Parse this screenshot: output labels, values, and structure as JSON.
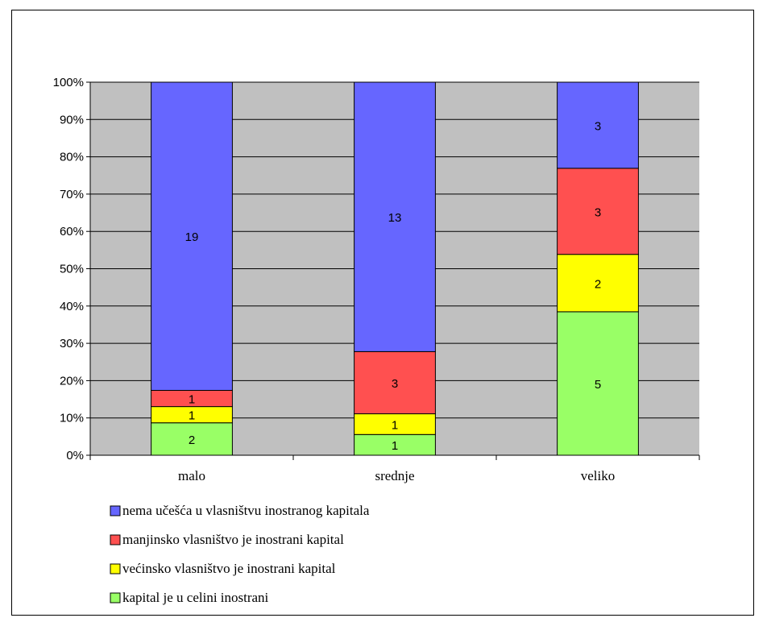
{
  "chart_data": {
    "type": "bar",
    "stacked": "percent",
    "categories": [
      "malo",
      "srednje",
      "veliko"
    ],
    "series": [
      {
        "name": "kapital je u celini inostrani",
        "values": [
          2,
          1,
          5
        ],
        "color": "#99ff66"
      },
      {
        "name": "većinsko vlasništvo je inostrani kapital",
        "values": [
          1,
          1,
          2
        ],
        "color": "#ffff00"
      },
      {
        "name": "manjinsko vlasništvo je inostrani kapital",
        "values": [
          1,
          3,
          3
        ],
        "color": "#ff5050"
      },
      {
        "name": "nema učešća u vlasništvu inostranog kapitala",
        "values": [
          19,
          13,
          3
        ],
        "color": "#6666ff"
      }
    ],
    "yticks": [
      "0%",
      "10%",
      "20%",
      "30%",
      "40%",
      "50%",
      "60%",
      "70%",
      "80%",
      "90%",
      "100%"
    ],
    "ylim": [
      0,
      100
    ],
    "grid": true,
    "plot_background": "#c0c0c0",
    "legend_position": "bottom-left"
  }
}
